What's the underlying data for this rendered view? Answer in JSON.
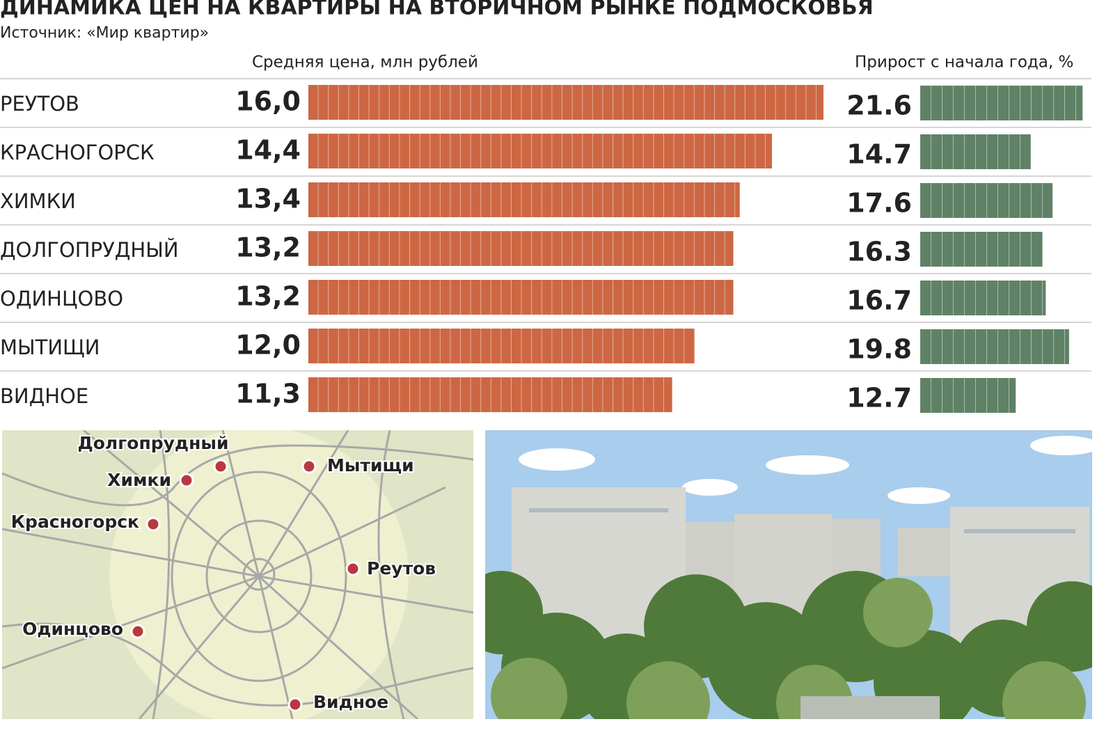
{
  "chart_data": {
    "type": "bar",
    "title": "ДИНАМИКА ЦЕН НА КВАРТИРЫ НА ВТОРИЧНОМ РЫНКЕ ПОДМОСКОВЬЯ",
    "subtitle": "Источник: «Мир квартир»",
    "categories": [
      "РЕУТОВ",
      "КРАСНОГОРСК",
      "ХИМКИ",
      "ДОЛГОПРУДНЫЙ",
      "ОДИНЦОВО",
      "МЫТИЩИ",
      "ВИДНОЕ"
    ],
    "series": [
      {
        "name": "Средняя цена, млн рублей",
        "color": "#cd6743",
        "values": [
          16.0,
          14.4,
          13.4,
          13.2,
          13.2,
          12.0,
          11.3
        ],
        "value_labels": [
          "16,0",
          "14,4",
          "13,4",
          "13,2",
          "13,2",
          "12,0",
          "11,3"
        ]
      },
      {
        "name": "Прирост с начала года, %",
        "color": "#5f8266",
        "values": [
          21.6,
          14.7,
          17.6,
          16.3,
          16.7,
          19.8,
          12.7
        ]
      }
    ]
  },
  "map": {
    "labels": [
      "Долгопрудный",
      "Химки",
      "Мытищи",
      "Красногорск",
      "Реутов",
      "Одинцово",
      "Видное"
    ]
  }
}
